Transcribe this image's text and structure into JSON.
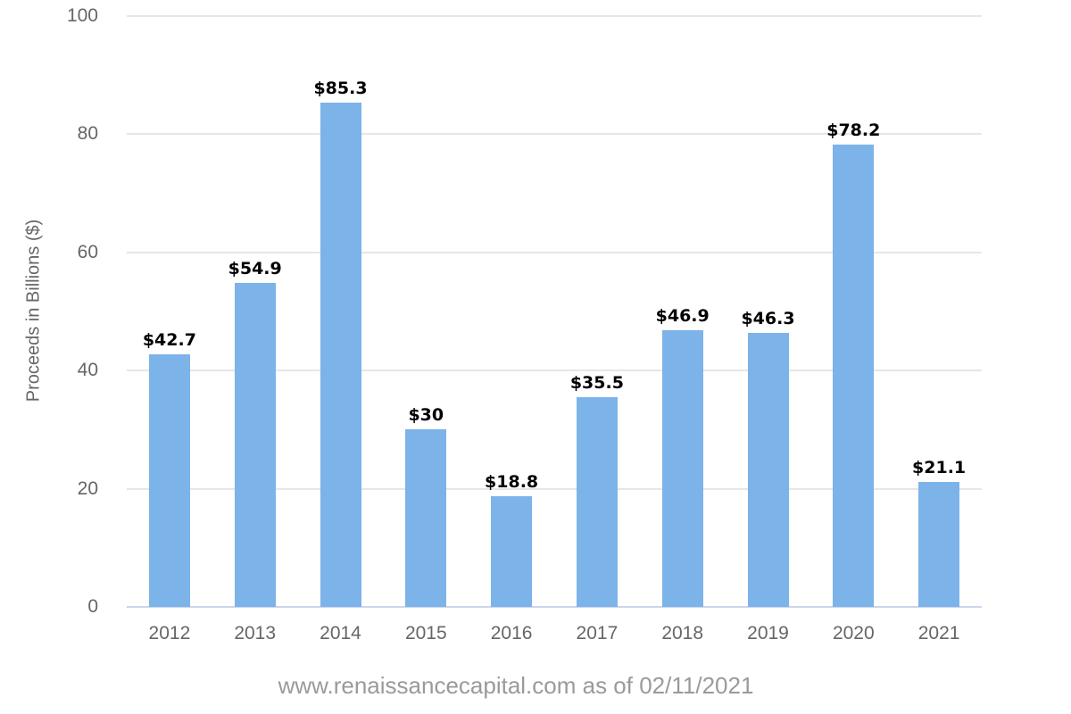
{
  "chart_data": {
    "type": "bar",
    "title": "",
    "categories": [
      "2012",
      "2013",
      "2014",
      "2015",
      "2016",
      "2017",
      "2018",
      "2019",
      "2020",
      "2021"
    ],
    "values": [
      42.7,
      54.9,
      85.3,
      30,
      18.8,
      35.5,
      46.9,
      46.3,
      78.2,
      21.1
    ],
    "data_labels": [
      "$42.7",
      "$54.9",
      "$85.3",
      "$30",
      "$18.8",
      "$35.5",
      "$46.9",
      "$46.3",
      "$78.2",
      "$21.1"
    ],
    "xlabel": "",
    "ylabel": "Proceeds in Billions ($)",
    "yticks": [
      0,
      20,
      40,
      60,
      80,
      100
    ],
    "ytick_labels": [
      "0",
      "20",
      "40",
      "60",
      "80",
      "100"
    ],
    "ylim": [
      0,
      100
    ],
    "grid": true,
    "legend": "none",
    "bar_color": "#7cb3e9"
  },
  "footer": {
    "credit": "www.renaissancecapital.com as of 02/11/2021"
  },
  "colors": {
    "bar": "#7cb3e9",
    "gridline": "#e6e6e6",
    "axis_line": "#ccd6eb",
    "tick_label": "#666666",
    "axis_title": "#666666",
    "data_label": "#000000",
    "credits": "#9a9a9a",
    "background": "#ffffff"
  }
}
